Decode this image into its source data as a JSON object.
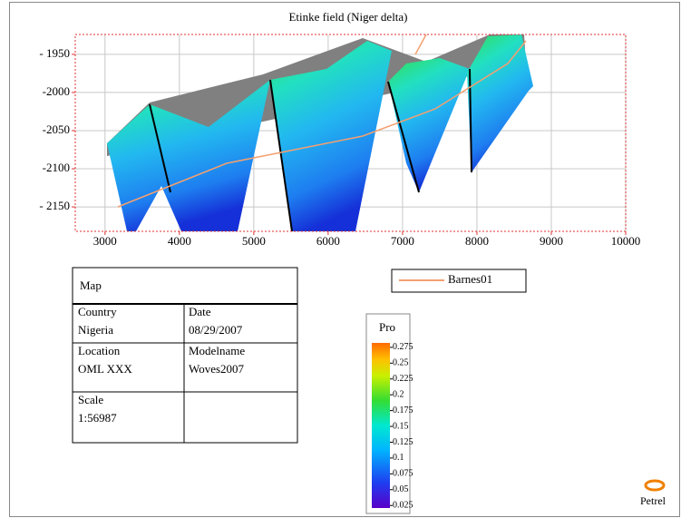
{
  "plot": {
    "title": "Etinke field (Niger delta)",
    "xlim": [
      2600,
      10000
    ],
    "xticks": [
      3000,
      4000,
      5000,
      6000,
      7000,
      8000,
      9000,
      10000
    ],
    "ylim": [
      -2182,
      -1924
    ],
    "yticks": [
      {
        "value": -1950,
        "label": "- 1950"
      },
      {
        "value": -2000,
        "label": "-2000"
      },
      {
        "value": -2050,
        "label": "-2050"
      },
      {
        "value": -2100,
        "label": "-2100"
      },
      {
        "value": -2150,
        "label": "- 2150"
      }
    ],
    "grid": true
  },
  "legend": {
    "items": [
      {
        "name": "Barnes01",
        "color": "#f4a070"
      }
    ]
  },
  "info_table": {
    "header": "Map",
    "rows": [
      [
        {
          "label": "Country",
          "value": "Nigeria"
        },
        {
          "label": "Date",
          "value": "08/29/2007"
        }
      ],
      [
        {
          "label": "Location",
          "value": "OML XXX"
        },
        {
          "label": "Modelname",
          "value": "Woves2007"
        }
      ],
      [
        {
          "label": "Scale",
          "value": "1:56987"
        }
      ]
    ]
  },
  "colorbar": {
    "title": "Pro",
    "lim": [
      0.021,
      0.282
    ],
    "ticks": [
      0.275,
      0.25,
      0.225,
      0.2,
      0.175,
      0.15,
      0.125,
      0.1,
      0.075,
      0.05,
      0.025
    ]
  },
  "logo": {
    "text": "Petrel"
  }
}
